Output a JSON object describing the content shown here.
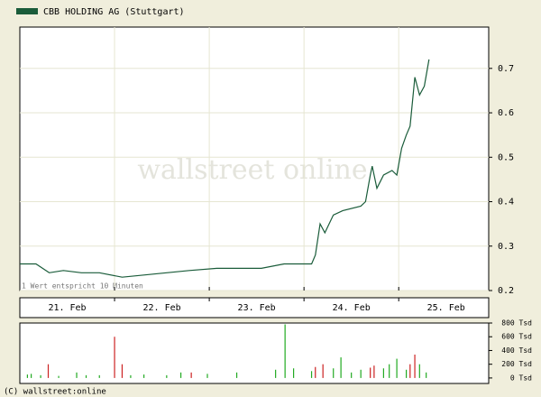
{
  "chart_data": [
    {
      "type": "line",
      "title": "CBB HOLDING AG (Stuttgart)",
      "note": "1 Wert entspricht 10 Minuten",
      "watermark": "wallstreet online",
      "series": [
        {
          "name": "CBB HOLDING AG (Stuttgart)",
          "color": "#1a5c3a",
          "x": [
            21.0,
            21.17,
            21.31,
            21.46,
            21.65,
            21.84,
            22.08,
            22.31,
            22.55,
            22.79,
            23.08,
            23.55,
            23.79,
            24.08,
            24.12,
            24.17,
            24.22,
            24.31,
            24.41,
            24.6,
            24.65,
            24.7,
            24.72,
            24.77,
            24.84,
            24.93,
            24.98,
            25.03,
            25.08,
            25.12,
            25.17,
            25.22,
            25.27,
            25.32
          ],
          "values": [
            0.26,
            0.26,
            0.24,
            0.245,
            0.24,
            0.24,
            0.23,
            0.235,
            0.24,
            0.245,
            0.25,
            0.25,
            0.26,
            0.26,
            0.28,
            0.35,
            0.33,
            0.37,
            0.38,
            0.39,
            0.4,
            0.46,
            0.48,
            0.43,
            0.46,
            0.47,
            0.46,
            0.52,
            0.55,
            0.57,
            0.68,
            0.64,
            0.66,
            0.72
          ]
        }
      ],
      "xlim": [
        21,
        25.95
      ],
      "xticks": [
        {
          "value": 21.5,
          "label": "21. Feb"
        },
        {
          "value": 22.5,
          "label": "22. Feb"
        },
        {
          "value": 23.5,
          "label": "23. Feb"
        },
        {
          "value": 24.5,
          "label": "24. Feb"
        },
        {
          "value": 25.5,
          "label": "25. Feb"
        }
      ],
      "xminorticks": [
        22,
        23,
        24,
        25
      ],
      "ylim": [
        0.2,
        0.793
      ],
      "yticks": [
        0.2,
        0.3,
        0.4,
        0.5,
        0.6,
        0.7
      ],
      "grid": true
    },
    {
      "type": "bar",
      "footer": "(C) wallstreet:online",
      "x": [
        21.08,
        21.12,
        21.22,
        21.3,
        21.41,
        21.6,
        21.7,
        21.84,
        22.0,
        22.08,
        22.17,
        22.31,
        22.55,
        22.7,
        22.81,
        22.98,
        23.29,
        23.7,
        23.8,
        23.89,
        24.08,
        24.12,
        24.2,
        24.31,
        24.39,
        24.5,
        24.6,
        24.7,
        24.74,
        24.84,
        24.9,
        24.98,
        25.08,
        25.12,
        25.17,
        25.22,
        25.29
      ],
      "values": [
        50,
        60,
        40,
        200,
        30,
        80,
        40,
        40,
        600,
        200,
        40,
        50,
        40,
        80,
        80,
        60,
        80,
        120,
        780,
        140,
        100,
        160,
        200,
        140,
        300,
        80,
        120,
        150,
        180,
        140,
        200,
        280,
        120,
        200,
        340,
        200,
        80
      ],
      "colors": [
        "#22aa22",
        "#22aa22",
        "#22aa22",
        "#cc2222",
        "#22aa22",
        "#22aa22",
        "#22aa22",
        "#22aa22",
        "#cc2222",
        "#cc2222",
        "#22aa22",
        "#22aa22",
        "#22aa22",
        "#22aa22",
        "#cc2222",
        "#22aa22",
        "#22aa22",
        "#22aa22",
        "#22aa22",
        "#22aa22",
        "#22aa22",
        "#cc2222",
        "#cc2222",
        "#22aa22",
        "#22aa22",
        "#22aa22",
        "#22aa22",
        "#cc2222",
        "#cc2222",
        "#22aa22",
        "#22aa22",
        "#22aa22",
        "#22aa22",
        "#cc2222",
        "#cc2222",
        "#22aa22",
        "#22aa22"
      ],
      "xlim": [
        21,
        25.95
      ],
      "ylim": [
        -80,
        800
      ],
      "yticks": [
        {
          "value": 800,
          "label": "800 Tsd"
        },
        {
          "value": 600,
          "label": "600 Tsd"
        },
        {
          "value": 400,
          "label": "400 Tsd"
        },
        {
          "value": 200,
          "label": "200 Tsd"
        },
        {
          "value": 0,
          "label": "0 Tsd"
        }
      ]
    }
  ]
}
